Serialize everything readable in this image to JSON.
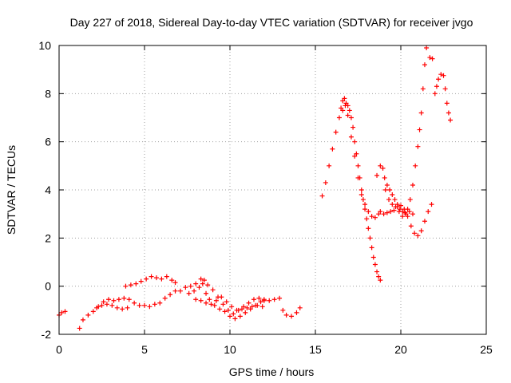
{
  "chart_data": {
    "type": "scatter",
    "title": "Day 227 of 2018, Sidereal Day-to-day VTEC variation (SDTVAR) for receiver jvgo",
    "xlabel": "GPS time / hours",
    "ylabel": "SDTVAR / TECUs",
    "xlim": [
      0,
      25
    ],
    "ylim": [
      -2,
      10
    ],
    "xticks": [
      0,
      5,
      10,
      15,
      20,
      25
    ],
    "yticks": [
      -2,
      0,
      2,
      4,
      6,
      8,
      10
    ],
    "grid": true,
    "marker": "+",
    "marker_color": "#ff0000",
    "series": [
      {
        "points": [
          [
            0.0,
            -1.2
          ],
          [
            0.15,
            -1.1
          ],
          [
            0.35,
            -1.05
          ],
          [
            1.2,
            -1.75
          ],
          [
            1.4,
            -1.4
          ],
          [
            1.7,
            -1.2
          ],
          [
            2.0,
            -1.05
          ],
          [
            2.3,
            -0.85
          ],
          [
            2.6,
            -0.65
          ],
          [
            2.9,
            -0.55
          ],
          [
            3.2,
            -0.6
          ],
          [
            3.5,
            -0.55
          ],
          [
            3.8,
            -0.5
          ],
          [
            4.1,
            -0.55
          ],
          [
            4.4,
            -0.7
          ],
          [
            4.7,
            -0.8
          ],
          [
            5.0,
            -0.8
          ],
          [
            5.3,
            -0.85
          ],
          [
            5.6,
            -0.75
          ],
          [
            5.9,
            -0.7
          ],
          [
            6.2,
            -0.5
          ],
          [
            6.5,
            -0.35
          ],
          [
            6.8,
            -0.2
          ],
          [
            7.1,
            -0.2
          ],
          [
            7.4,
            -0.05
          ],
          [
            7.7,
            0.0
          ],
          [
            8.0,
            0.1
          ],
          [
            8.3,
            0.3
          ],
          [
            8.5,
            0.25
          ],
          [
            8.7,
            0.05
          ],
          [
            9.0,
            -0.15
          ],
          [
            9.3,
            -0.45
          ],
          [
            9.6,
            -0.75
          ],
          [
            9.9,
            -1.0
          ],
          [
            10.2,
            -1.15
          ],
          [
            10.5,
            -1.0
          ],
          [
            10.8,
            -0.85
          ],
          [
            11.1,
            -0.7
          ],
          [
            11.4,
            -0.55
          ],
          [
            11.7,
            -0.5
          ],
          [
            12.0,
            -0.55
          ],
          [
            12.3,
            -0.6
          ],
          [
            12.6,
            -0.55
          ],
          [
            12.9,
            -0.5
          ],
          [
            2.2,
            -0.9
          ],
          [
            2.5,
            -0.8
          ],
          [
            2.8,
            -0.75
          ],
          [
            3.1,
            -0.8
          ],
          [
            3.4,
            -0.9
          ],
          [
            3.7,
            -0.95
          ],
          [
            4.0,
            -0.9
          ],
          [
            3.9,
            0.0
          ],
          [
            4.2,
            0.05
          ],
          [
            4.5,
            0.1
          ],
          [
            4.8,
            0.2
          ],
          [
            5.1,
            0.3
          ],
          [
            5.4,
            0.4
          ],
          [
            5.7,
            0.35
          ],
          [
            6.0,
            0.3
          ],
          [
            6.3,
            0.4
          ],
          [
            6.6,
            0.25
          ],
          [
            6.8,
            0.15
          ],
          [
            7.6,
            -0.3
          ],
          [
            7.9,
            -0.2
          ],
          [
            8.2,
            -0.05
          ],
          [
            8.4,
            0.1
          ],
          [
            8.6,
            -0.3
          ],
          [
            8.8,
            -0.55
          ],
          [
            9.1,
            -0.8
          ],
          [
            9.4,
            -0.95
          ],
          [
            9.7,
            -1.05
          ],
          [
            10.0,
            -1.25
          ],
          [
            10.3,
            -1.35
          ],
          [
            10.6,
            -1.25
          ],
          [
            10.9,
            -1.1
          ],
          [
            11.2,
            -0.95
          ],
          [
            11.5,
            -0.8
          ],
          [
            11.8,
            -0.65
          ],
          [
            12.0,
            -0.6
          ],
          [
            8.0,
            -0.55
          ],
          [
            8.3,
            -0.6
          ],
          [
            8.6,
            -0.7
          ],
          [
            8.9,
            -0.75
          ],
          [
            9.2,
            -0.6
          ],
          [
            9.5,
            -0.45
          ],
          [
            9.8,
            -0.65
          ],
          [
            10.1,
            -0.85
          ],
          [
            10.4,
            -1.0
          ],
          [
            10.7,
            -0.95
          ],
          [
            11.0,
            -0.9
          ],
          [
            11.3,
            -0.85
          ],
          [
            11.6,
            -0.8
          ],
          [
            11.9,
            -0.85
          ],
          [
            13.1,
            -1.0
          ],
          [
            13.3,
            -1.2
          ],
          [
            13.6,
            -1.25
          ],
          [
            13.9,
            -1.1
          ],
          [
            14.1,
            -0.9
          ],
          [
            15.4,
            3.75
          ],
          [
            15.6,
            4.3
          ],
          [
            15.8,
            5.0
          ],
          [
            16.0,
            5.7
          ],
          [
            16.2,
            6.4
          ],
          [
            16.4,
            7.0
          ],
          [
            16.5,
            7.4
          ],
          [
            16.6,
            7.7
          ],
          [
            16.7,
            7.8
          ],
          [
            16.8,
            7.6
          ],
          [
            16.9,
            7.5
          ],
          [
            17.0,
            7.3
          ],
          [
            17.1,
            7.0
          ],
          [
            17.2,
            6.6
          ],
          [
            17.3,
            6.0
          ],
          [
            17.4,
            5.5
          ],
          [
            17.5,
            5.0
          ],
          [
            17.6,
            4.5
          ],
          [
            17.7,
            4.0
          ],
          [
            17.8,
            3.6
          ],
          [
            17.9,
            3.2
          ],
          [
            18.0,
            2.8
          ],
          [
            18.1,
            2.4
          ],
          [
            18.2,
            2.0
          ],
          [
            18.3,
            1.6
          ],
          [
            18.4,
            1.2
          ],
          [
            18.5,
            0.9
          ],
          [
            18.6,
            0.6
          ],
          [
            18.7,
            0.4
          ],
          [
            18.8,
            0.25
          ],
          [
            16.6,
            7.3
          ],
          [
            16.75,
            7.5
          ],
          [
            16.9,
            7.1
          ],
          [
            17.1,
            6.2
          ],
          [
            17.3,
            5.4
          ],
          [
            17.5,
            4.5
          ],
          [
            17.7,
            3.8
          ],
          [
            17.9,
            3.4
          ],
          [
            18.1,
            3.1
          ],
          [
            18.3,
            2.9
          ],
          [
            18.5,
            2.85
          ],
          [
            18.7,
            3.0
          ],
          [
            18.8,
            3.1
          ],
          [
            19.0,
            3.0
          ],
          [
            19.2,
            3.05
          ],
          [
            19.4,
            3.1
          ],
          [
            19.6,
            3.15
          ],
          [
            19.8,
            3.3
          ],
          [
            20.0,
            3.35
          ],
          [
            20.2,
            3.2
          ],
          [
            20.4,
            2.9
          ],
          [
            20.6,
            2.5
          ],
          [
            20.8,
            2.2
          ],
          [
            21.0,
            2.1
          ],
          [
            21.2,
            2.3
          ],
          [
            21.4,
            2.7
          ],
          [
            21.6,
            3.1
          ],
          [
            21.8,
            3.4
          ],
          [
            18.6,
            4.6
          ],
          [
            18.8,
            5.0
          ],
          [
            18.95,
            4.9
          ],
          [
            19.05,
            4.5
          ],
          [
            19.2,
            4.2
          ],
          [
            19.35,
            4.0
          ],
          [
            19.5,
            3.8
          ],
          [
            19.65,
            3.6
          ],
          [
            19.8,
            3.4
          ],
          [
            19.95,
            3.2
          ],
          [
            20.1,
            3.1
          ],
          [
            20.25,
            3.05
          ],
          [
            20.4,
            3.2
          ],
          [
            20.55,
            3.6
          ],
          [
            20.7,
            4.2
          ],
          [
            20.85,
            5.0
          ],
          [
            21.0,
            5.8
          ],
          [
            21.1,
            6.5
          ],
          [
            21.2,
            7.2
          ],
          [
            21.3,
            8.2
          ],
          [
            21.4,
            9.2
          ],
          [
            21.5,
            9.9
          ],
          [
            19.1,
            4.0
          ],
          [
            19.3,
            3.6
          ],
          [
            19.5,
            3.4
          ],
          [
            19.7,
            3.3
          ],
          [
            19.9,
            3.1
          ],
          [
            20.1,
            2.9
          ],
          [
            20.3,
            3.0
          ],
          [
            20.5,
            3.1
          ],
          [
            20.7,
            3.0
          ],
          [
            21.7,
            9.5
          ],
          [
            21.85,
            9.45
          ],
          [
            22.0,
            8.0
          ],
          [
            22.1,
            8.3
          ],
          [
            22.2,
            8.6
          ],
          [
            22.35,
            8.8
          ],
          [
            22.5,
            8.75
          ],
          [
            22.6,
            8.2
          ],
          [
            22.7,
            7.6
          ],
          [
            22.8,
            7.2
          ],
          [
            22.9,
            6.9
          ]
        ]
      }
    ]
  }
}
